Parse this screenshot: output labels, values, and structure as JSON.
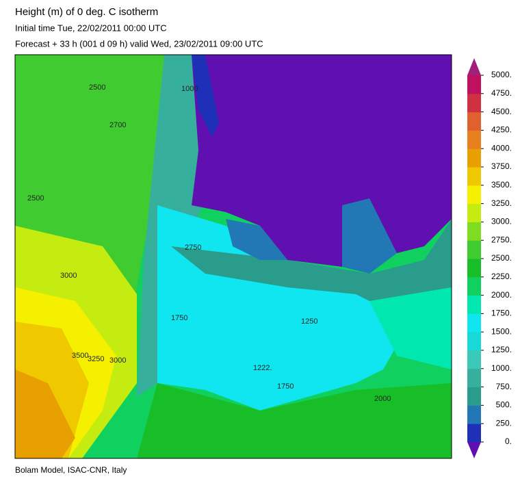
{
  "header": {
    "title": "Height (m) of 0 deg. C isotherm",
    "initial_time": "Initial time  Tue, 22/02/2011  00:00 UTC",
    "forecast": "Forecast  + 33 h  (001 d 09 h)  valid Wed, 23/02/2011 09:00 UTC"
  },
  "map": {
    "contour_labels": [
      "2500",
      "2700",
      "2500",
      "3000",
      "3500",
      "3250",
      "3000",
      "2750",
      "1750",
      "1222.",
      "1750",
      "2000",
      "1000",
      "1250"
    ]
  },
  "colorbar": {
    "labels": [
      "5000.",
      "4750.",
      "4500.",
      "4250.",
      "4000.",
      "3750.",
      "3500.",
      "3250.",
      "3000.",
      "2750.",
      "2500.",
      "2250.",
      "2000.",
      "1750.",
      "1500.",
      "1250.",
      "1000.",
      "750.",
      "500.",
      "250.",
      "0."
    ],
    "colors": [
      "#1e30b8",
      "#2278b4",
      "#2a9c8c",
      "#36b09c",
      "#3cc8b8",
      "#18d8d8",
      "#10e6f0",
      "#00e8b0",
      "#10d060",
      "#18be28",
      "#40cc30",
      "#80dc20",
      "#c4ec10",
      "#f4f000",
      "#f0c800",
      "#e8a000",
      "#e88020",
      "#e06030",
      "#d03040",
      "#c01060"
    ],
    "under_color": "#6010b0",
    "over_color": "#a0207a"
  },
  "footer": {
    "credit": "Bolam Model, ISAC-CNR, Italy"
  }
}
